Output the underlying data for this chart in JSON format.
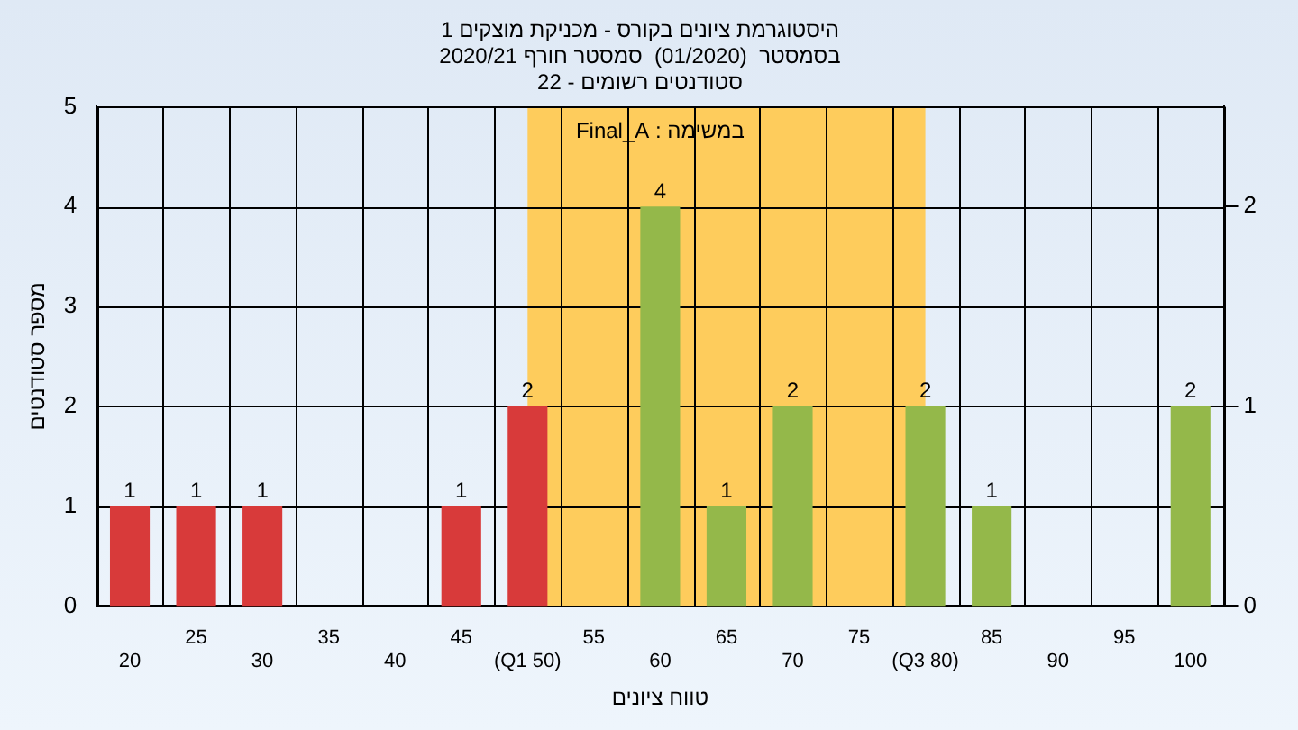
{
  "chart_data": {
    "type": "bar",
    "title": "היסטוגרמת ציונים בקורס - מכניקת מוצקים 1",
    "subtitle": "בסמסטר  (01/2020)  סמסטר חורף 2020/21\nסטודנטים רשומים - 22",
    "xlabel": "טווח ציונים",
    "ylabel": "מספר סטודנטים",
    "categories": [
      "20",
      "25",
      "30",
      "35",
      "40",
      "45",
      "(Q1 50)",
      "55",
      "60",
      "65",
      "70",
      "75",
      "(Q3 80)",
      "85",
      "90",
      "95",
      "100"
    ],
    "values": [
      1,
      1,
      1,
      0,
      0,
      1,
      2,
      0,
      4,
      1,
      2,
      0,
      2,
      1,
      0,
      0,
      2
    ],
    "value_labels": [
      "1",
      "1",
      "1",
      null,
      null,
      "1",
      "2",
      null,
      "4",
      "1",
      "2",
      null,
      "2",
      "1",
      null,
      null,
      "2"
    ],
    "colors": [
      "#d83a3a",
      "#d83a3a",
      "#d83a3a",
      "#d83a3a",
      "#d83a3a",
      "#d83a3a",
      "#d83a3a",
      "#94b84a",
      "#94b84a",
      "#94b84a",
      "#94b84a",
      "#94b84a",
      "#94b84a",
      "#94b84a",
      "#94b84a",
      "#94b84a",
      "#94b84a"
    ],
    "ylim": [
      0,
      5
    ],
    "yticks": [
      0,
      1,
      2,
      3,
      4,
      5
    ],
    "y2lim": [
      0,
      2.5
    ],
    "y2ticks": [
      0,
      1,
      2
    ],
    "bands": [
      {
        "axis": "x",
        "from": "(Q1 50)",
        "to": "(Q3 80)",
        "color": "#fecc5c"
      }
    ],
    "annotations": [
      "במשימה : Final_A"
    ],
    "grid": true,
    "legend": false
  }
}
